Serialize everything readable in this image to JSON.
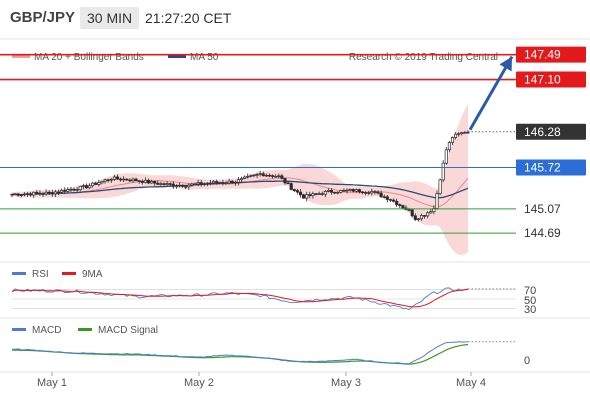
{
  "header": {
    "pair": "GBP/JPY",
    "timeframe": "30 MIN",
    "time": "21:27:20 CET"
  },
  "legend": {
    "bollinger": "MA 20 + Bollinger Bands",
    "ma50": "MA 50",
    "credit": "Research © 2019 Trading Central",
    "rsi": "RSI",
    "rsi_ma": "9MA",
    "macd": "MACD",
    "macd_signal": "MACD Signal"
  },
  "colors": {
    "candle": "#2a2a2a",
    "bollinger_fill": "#f7b8b8",
    "bollinger_line": "#e88a8a",
    "ma50": "#2b4a7a",
    "resistance": "#e31a1c",
    "pivot": "#2b6fd6",
    "support": "#2e9e3a",
    "target_arrow": "#2b5aa8",
    "rsi": "#4e79d8",
    "rsi_ma": "#e31a1c",
    "macd": "#4e79d8",
    "macd_signal": "#3a9a1a"
  },
  "price_chart": {
    "y_range": [
      144.3,
      147.72
    ],
    "levels": [
      {
        "name": "resistance-2",
        "value": 147.49,
        "label": "147.49",
        "kind": "resistance"
      },
      {
        "name": "resistance-1",
        "value": 147.1,
        "label": "147.10",
        "kind": "resistance"
      },
      {
        "name": "last-price",
        "value": 146.28,
        "label": "146.28",
        "kind": "last"
      },
      {
        "name": "pivot",
        "value": 145.72,
        "label": "145.72",
        "kind": "pivot"
      },
      {
        "name": "support-1",
        "value": 145.07,
        "label": "145.07",
        "kind": "support"
      },
      {
        "name": "support-2",
        "value": 144.69,
        "label": "144.69",
        "kind": "support"
      }
    ],
    "target_arrow": {
      "from": 146.28,
      "to": 147.49
    }
  },
  "rsi_chart": {
    "levels": [
      "70",
      "50",
      "30"
    ]
  },
  "macd_chart": {
    "zero_label": "0"
  },
  "x_axis": {
    "labels": [
      "May 1",
      "May 2",
      "May 3",
      "May 4"
    ]
  },
  "chart_data": {
    "type": "candlestick",
    "anchors_close": [
      [
        0,
        145.3
      ],
      [
        12,
        145.32
      ],
      [
        24,
        145.42
      ],
      [
        32,
        145.55
      ],
      [
        40,
        145.52
      ],
      [
        48,
        145.46
      ],
      [
        56,
        145.44
      ],
      [
        64,
        145.48
      ],
      [
        72,
        145.5
      ],
      [
        80,
        145.62
      ],
      [
        86,
        145.58
      ],
      [
        90,
        145.4
      ],
      [
        94,
        145.26
      ],
      [
        98,
        145.3
      ],
      [
        102,
        145.34
      ],
      [
        110,
        145.36
      ],
      [
        116,
        145.34
      ],
      [
        122,
        145.22
      ],
      [
        128,
        145.04
      ],
      [
        130,
        144.92
      ],
      [
        133,
        144.98
      ],
      [
        136,
        145.08
      ],
      [
        138,
        145.55
      ],
      [
        140,
        146.0
      ],
      [
        142,
        146.2
      ],
      [
        146,
        146.28
      ],
      [
        148,
        146.28
      ]
    ],
    "anchors_rsi": [
      [
        0,
        68
      ],
      [
        20,
        66
      ],
      [
        40,
        55
      ],
      [
        60,
        58
      ],
      [
        70,
        62
      ],
      [
        80,
        57
      ],
      [
        90,
        44
      ],
      [
        100,
        50
      ],
      [
        110,
        53
      ],
      [
        120,
        40
      ],
      [
        128,
        28
      ],
      [
        132,
        45
      ],
      [
        135,
        60
      ],
      [
        140,
        70
      ],
      [
        148,
        68
      ]
    ],
    "anchors_macd": [
      [
        0,
        0.1
      ],
      [
        20,
        0.06
      ],
      [
        40,
        0.05
      ],
      [
        60,
        0.02
      ],
      [
        70,
        0.04
      ],
      [
        80,
        0.02
      ],
      [
        90,
        -0.02
      ],
      [
        100,
        -0.02
      ],
      [
        110,
        0.0
      ],
      [
        120,
        -0.03
      ],
      [
        128,
        -0.04
      ],
      [
        132,
        0.02
      ],
      [
        136,
        0.1
      ],
      [
        140,
        0.16
      ],
      [
        148,
        0.17
      ]
    ],
    "candle_count": 148,
    "rsi_range": [
      15,
      85
    ],
    "macd_range": [
      -0.1,
      0.22
    ]
  }
}
